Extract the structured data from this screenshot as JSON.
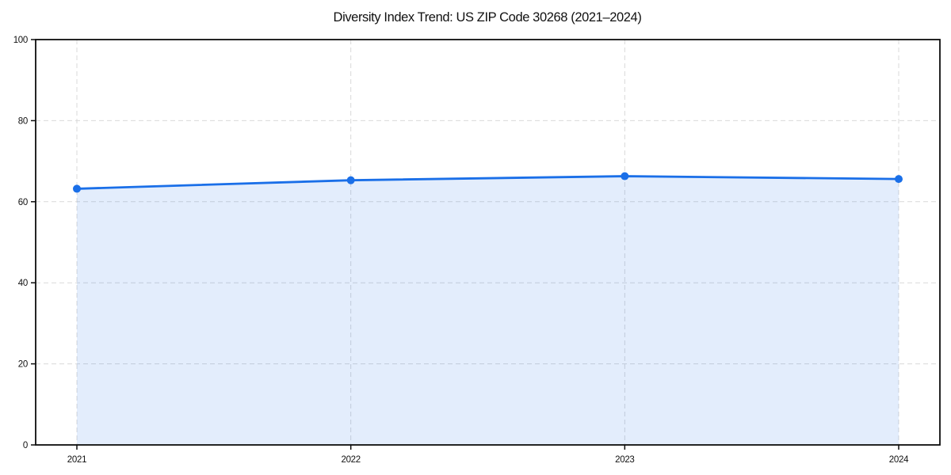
{
  "chart_data": {
    "type": "area",
    "title": "Diversity Index Trend: US ZIP Code 30268 (2021–2024)",
    "categories": [
      "2021",
      "2022",
      "2023",
      "2024"
    ],
    "values": [
      63.2,
      65.3,
      66.3,
      65.6
    ],
    "xlabel": "",
    "ylabel": "",
    "ylim": [
      0,
      100
    ],
    "yticks": [
      0,
      20,
      40,
      60,
      80,
      100
    ],
    "grid": "dashed",
    "legend": "none",
    "marker": "circle",
    "colors": {
      "line": "#1a6fe8",
      "fill": "rgba(26,111,232,0.12)",
      "grid": "#d9d9d9",
      "axis": "#0d0d0d",
      "tick_label": "#111111",
      "background": "#ffffff"
    }
  }
}
